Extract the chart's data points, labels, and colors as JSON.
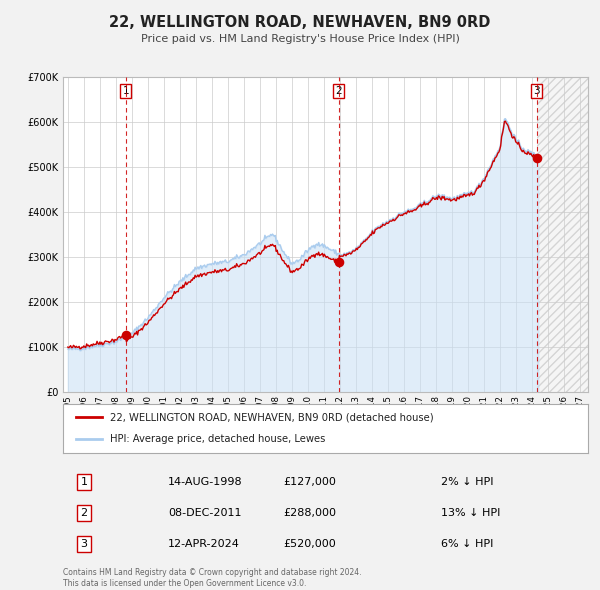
{
  "title": "22, WELLINGTON ROAD, NEWHAVEN, BN9 0RD",
  "subtitle": "Price paid vs. HM Land Registry's House Price Index (HPI)",
  "bg_color": "#f2f2f2",
  "plot_bg_color": "#ffffff",
  "hpi_color": "#aaccee",
  "hpi_fill_color": "#c8dff5",
  "price_color": "#cc0000",
  "grid_color": "#cccccc",
  "vline_color": "#cc0000",
  "ylim": [
    0,
    700000
  ],
  "yticks": [
    0,
    100000,
    200000,
    300000,
    400000,
    500000,
    600000,
    700000
  ],
  "ytick_labels": [
    "£0",
    "£100K",
    "£200K",
    "£300K",
    "£400K",
    "£500K",
    "£600K",
    "£700K"
  ],
  "xlim_start": 1994.7,
  "xlim_end": 2027.5,
  "xtick_years": [
    1995,
    1996,
    1997,
    1998,
    1999,
    2000,
    2001,
    2002,
    2003,
    2004,
    2005,
    2006,
    2007,
    2008,
    2009,
    2010,
    2011,
    2012,
    2013,
    2014,
    2015,
    2016,
    2017,
    2018,
    2019,
    2020,
    2021,
    2022,
    2023,
    2024,
    2025,
    2026,
    2027
  ],
  "sale_dates": [
    1998.617,
    2011.922,
    2024.285
  ],
  "sale_prices": [
    127000,
    288000,
    520000
  ],
  "sale_labels": [
    "1",
    "2",
    "3"
  ],
  "sale_date_strs": [
    "14-AUG-1998",
    "08-DEC-2011",
    "12-APR-2024"
  ],
  "sale_price_strs": [
    "£127,000",
    "£288,000",
    "£520,000"
  ],
  "sale_hpi_diffs": [
    "2% ↓ HPI",
    "13% ↓ HPI",
    "6% ↓ HPI"
  ],
  "legend_line1": "22, WELLINGTON ROAD, NEWHAVEN, BN9 0RD (detached house)",
  "legend_line2": "HPI: Average price, detached house, Lewes",
  "footnote": "Contains HM Land Registry data © Crown copyright and database right 2024.\nThis data is licensed under the Open Government Licence v3.0.",
  "hatched_region_start": 2024.285
}
